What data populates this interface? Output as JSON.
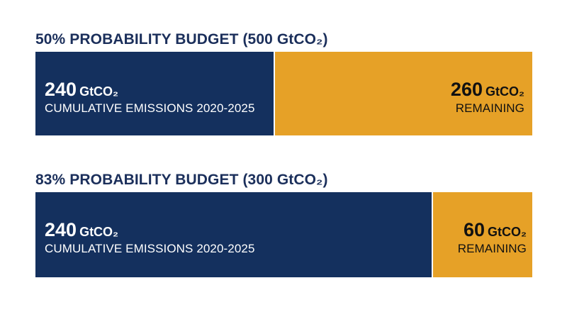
{
  "chart_data": [
    {
      "type": "bar",
      "title": "50% PROBABILITY BUDGET (500 GtCO₂)",
      "total": 500,
      "series": [
        {
          "value": 240,
          "value_label": "240",
          "unit": "GtCO₂",
          "label": "CUMULATIVE EMISSIONS 2020-2025",
          "color": "#14305e"
        },
        {
          "value": 260,
          "value_label": "260",
          "unit": "GtCO₂",
          "label": "REMAINING",
          "color": "#e6a127"
        }
      ]
    },
    {
      "type": "bar",
      "title": "83% PROBABILITY BUDGET (300 GtCO₂)",
      "total": 300,
      "series": [
        {
          "value": 240,
          "value_label": "240",
          "unit": "GtCO₂",
          "label": "CUMULATIVE EMISSIONS 2020-2025",
          "color": "#14305e"
        },
        {
          "value": 60,
          "value_label": "60",
          "unit": "GtCO₂",
          "label": "REMAINING",
          "color": "#e6a127"
        }
      ]
    }
  ]
}
